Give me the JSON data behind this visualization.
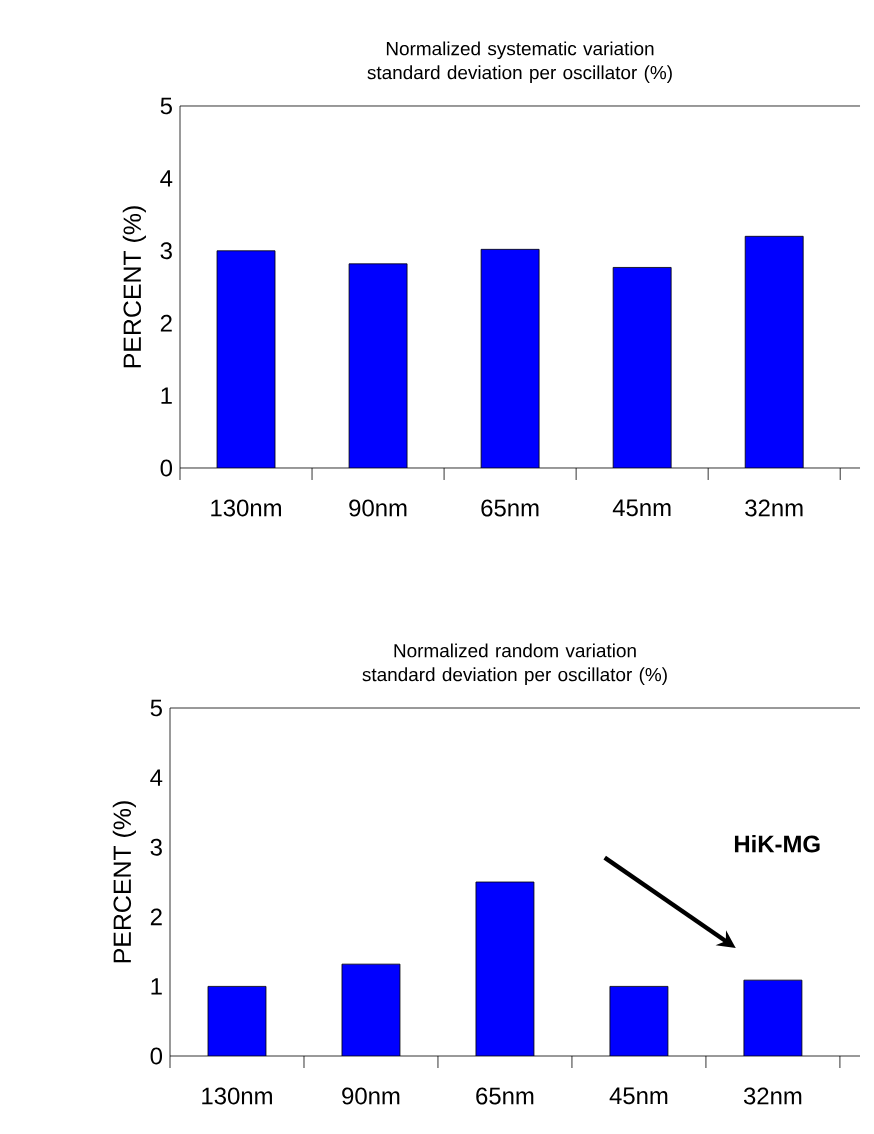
{
  "chart_data": [
    {
      "type": "bar",
      "title": "Normalized systematic variation standard deviation per oscillator (%)",
      "ylabel": "PERCENT (%)",
      "categories": [
        "130nm",
        "90nm",
        "65nm",
        "45nm",
        "32nm"
      ],
      "values": [
        3.0,
        2.82,
        3.02,
        2.77,
        3.2
      ],
      "color": "#0000ff",
      "ylim": [
        0,
        5
      ],
      "yticks": [
        0,
        1,
        2,
        3,
        4,
        5
      ]
    },
    {
      "type": "bar",
      "title": "Normalized random variation standard deviation per oscillator (%)",
      "ylabel": "PERCENT (%)",
      "categories": [
        "130nm",
        "90nm",
        "65nm",
        "45nm",
        "32nm"
      ],
      "values": [
        1.0,
        1.32,
        2.5,
        1.0,
        1.09
      ],
      "color": "#0000ff",
      "ylim": [
        0,
        5
      ],
      "yticks": [
        0,
        1,
        2,
        3,
        4,
        5
      ],
      "annotations": [
        "HiK-MG"
      ]
    }
  ]
}
